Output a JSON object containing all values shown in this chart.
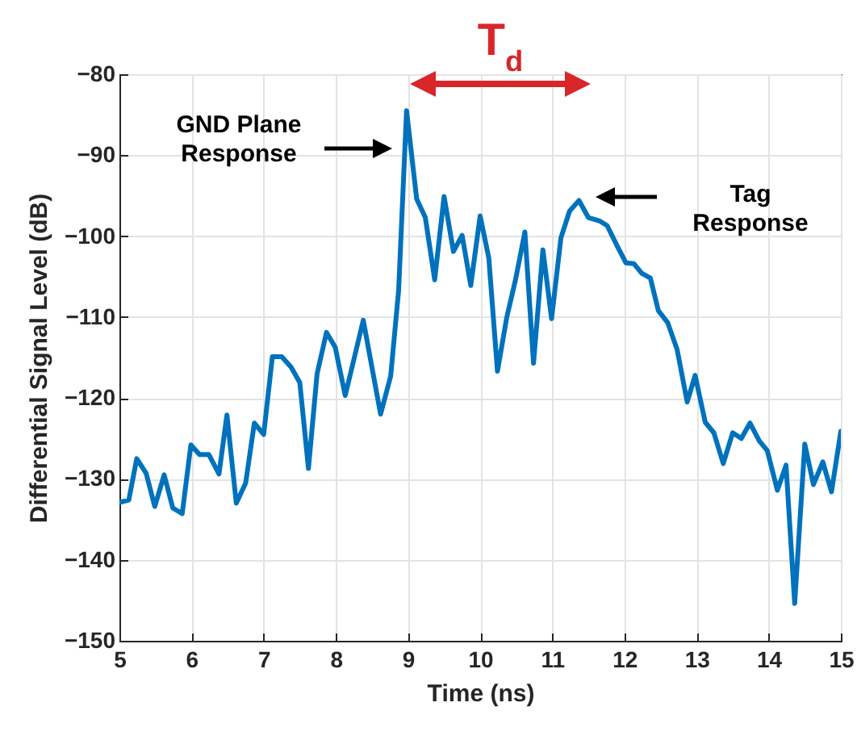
{
  "chart_data": {
    "type": "line",
    "xlabel": "Time (ns)",
    "ylabel": "Differential Signal Level (dB)",
    "x": [
      5.0,
      5.13,
      5.24,
      5.37,
      5.49,
      5.62,
      5.74,
      5.87,
      5.99,
      6.11,
      6.24,
      6.38,
      6.49,
      6.62,
      6.75,
      6.87,
      7.0,
      7.12,
      7.25,
      7.38,
      7.5,
      7.62,
      7.74,
      7.87,
      7.99,
      8.13,
      8.38,
      8.62,
      8.76,
      8.87,
      8.98,
      9.12,
      9.24,
      9.37,
      9.5,
      9.63,
      9.75,
      9.87,
      10.0,
      10.12,
      10.24,
      10.37,
      10.49,
      10.62,
      10.74,
      10.87,
      10.99,
      11.12,
      11.24,
      11.37,
      11.5,
      11.65,
      11.76,
      11.91,
      12.02,
      12.13,
      12.24,
      12.36,
      12.47,
      12.6,
      12.73,
      12.87,
      12.98,
      13.12,
      13.24,
      13.37,
      13.5,
      13.62,
      13.74,
      13.87,
      13.98,
      14.12,
      14.24,
      14.36,
      14.5,
      14.62,
      14.75,
      14.87,
      15.0
    ],
    "series": [
      {
        "color": "#0072bd",
        "values": [
          -132.9,
          -132.6,
          -127.5,
          -129.3,
          -133.4,
          -129.5,
          -133.6,
          -134.3,
          -125.8,
          -127.0,
          -127.0,
          -129.4,
          -122.1,
          -133.0,
          -130.5,
          -123.1,
          -124.5,
          -114.9,
          -114.9,
          -116.2,
          -118.1,
          -128.7,
          -117.0,
          -111.9,
          -113.7,
          -119.7,
          -110.4,
          -122.0,
          -117.3,
          -106.7,
          -84.5,
          -95.4,
          -97.7,
          -105.4,
          -95.1,
          -101.9,
          -99.9,
          -106.1,
          -97.5,
          -102.7,
          -116.7,
          -110.0,
          -105.4,
          -99.5,
          -115.7,
          -101.7,
          -110.2,
          -100.2,
          -96.9,
          -95.6,
          -97.7,
          -98.1,
          -98.7,
          -101.4,
          -103.3,
          -103.4,
          -104.6,
          -105.2,
          -109.2,
          -110.7,
          -114.0,
          -120.5,
          -117.2,
          -123.0,
          -124.3,
          -128.1,
          -124.3,
          -125.0,
          -123.1,
          -125.3,
          -126.5,
          -131.4,
          -128.3,
          -145.4,
          -125.7,
          -130.7,
          -127.9,
          -131.6,
          -124.1
        ]
      }
    ],
    "xlim": [
      5,
      15
    ],
    "xticks": [
      5,
      6,
      7,
      8,
      9,
      10,
      11,
      12,
      13,
      14,
      15
    ],
    "ylim": [
      -150,
      -80
    ],
    "yticks": [
      -150,
      -140,
      -130,
      -120,
      -110,
      -100,
      -90,
      -80
    ],
    "grid": true,
    "line_style": "solid",
    "marker": "none",
    "annotations": [
      "GND Plane\nResponse",
      "Tag\nResponse",
      "T$_{d}$"
    ]
  }
}
